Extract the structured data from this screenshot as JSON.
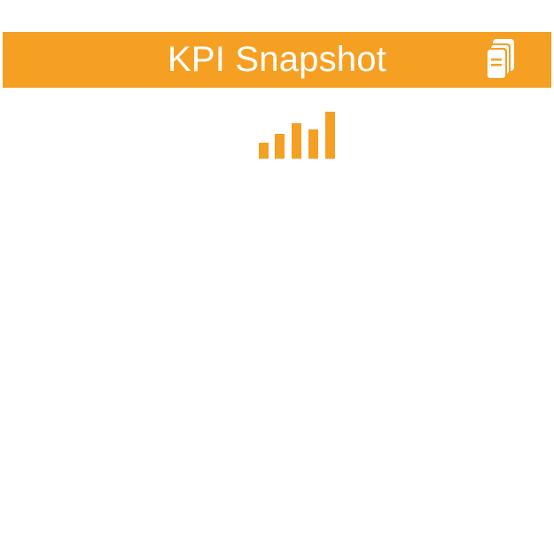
{
  "colors": {
    "accent": "#F6A023",
    "header_text": "#FFFFFF",
    "background": "#FFFFFF"
  },
  "header": {
    "title": "KPI Snapshot",
    "action_icon": "stacked-cards-icon"
  },
  "main": {
    "status_icon": "signal-bars-icon"
  }
}
